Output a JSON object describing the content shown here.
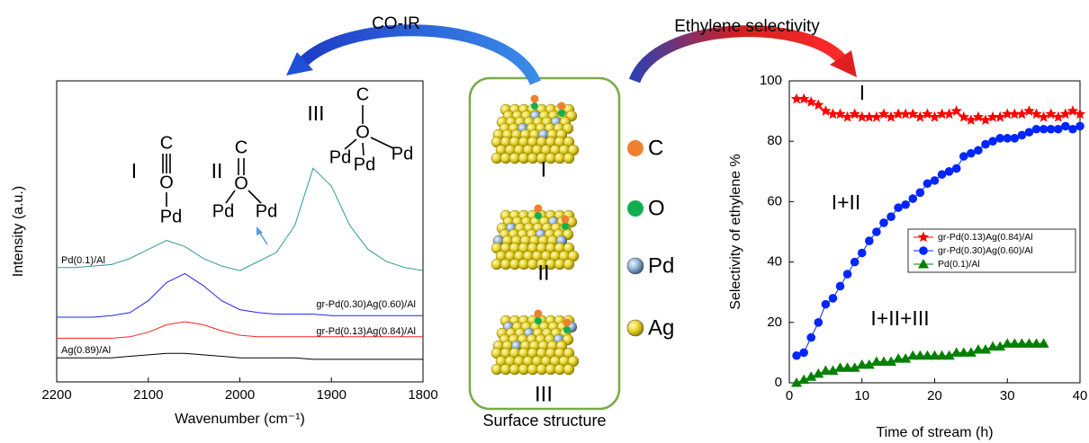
{
  "chart_data": [
    {
      "type": "line",
      "x_label": "Wavenumber (cm⁻¹)",
      "y_label": "Intensity (a.u.)",
      "x": [
        2200,
        2180,
        2160,
        2140,
        2120,
        2100,
        2080,
        2060,
        2040,
        2020,
        2000,
        1980,
        1960,
        1940,
        1920,
        1900,
        1880,
        1860,
        1840,
        1820,
        1800
      ],
      "xlim": [
        2200,
        1800
      ],
      "ylim": [
        0,
        100
      ],
      "xticks": [
        2200,
        2100,
        2000,
        1900,
        1800
      ],
      "series": [
        {
          "name": "Pd(0.1)/Al",
          "color": "#2e9c94",
          "values": [
            38,
            38,
            38.5,
            39,
            41,
            44,
            47,
            45,
            41,
            38.5,
            37,
            40,
            43,
            52,
            71,
            65,
            52,
            44,
            40,
            38,
            37
          ]
        },
        {
          "name": "gr-Pd(0.30)Ag(0.60)/Al",
          "color": "#2020ff",
          "values": [
            21.5,
            21.5,
            21.5,
            22,
            23,
            27,
            33,
            36,
            32,
            27,
            24,
            23,
            22.5,
            22.5,
            22.5,
            22,
            22,
            22,
            22,
            22,
            22
          ]
        },
        {
          "name": "gr-Pd(0.13)Ag(0.84)/Al",
          "color": "#ff2020",
          "values": [
            14.5,
            14.5,
            14.5,
            14.5,
            15,
            16.5,
            19,
            20,
            19,
            17,
            15.5,
            15,
            15,
            15,
            15,
            15,
            15,
            15,
            15,
            15,
            15
          ]
        },
        {
          "name": "Ag(0.89)/Al",
          "color": "#000000",
          "values": [
            8,
            8,
            8,
            8,
            8.5,
            9,
            9.5,
            9.5,
            9,
            8.5,
            8,
            8,
            8,
            8,
            7.5,
            7.5,
            7.5,
            7.5,
            7.5,
            7.5,
            7.5
          ]
        }
      ],
      "annotations": [
        {
          "text": "I",
          "color": "#e8201c"
        },
        {
          "text": "II",
          "color": "#e8201c"
        },
        {
          "text": "III",
          "color": "#e8201c"
        }
      ],
      "molecules": [
        {
          "atoms": [
            "C",
            "O",
            "Pd"
          ]
        },
        {
          "atoms": [
            "C",
            "O",
            "Pd",
            "Pd"
          ]
        },
        {
          "atoms": [
            "C",
            "O",
            "Pd",
            "Pd",
            "Pd"
          ]
        }
      ]
    },
    {
      "type": "line",
      "x_label": "Time of stream (h)",
      "y_label": "Selectivity of ethylene %",
      "xlim": [
        0,
        40
      ],
      "ylim": [
        0,
        100
      ],
      "xticks": [
        0,
        10,
        20,
        30,
        40
      ],
      "yticks": [
        0,
        20,
        40,
        60,
        80,
        100
      ],
      "legend": "right",
      "series": [
        {
          "name": "gr-Pd(0.13)Ag(0.84)/Al",
          "color": "#ff0000",
          "marker": "star",
          "x": [
            1,
            2,
            3,
            4,
            5,
            6,
            7,
            8,
            9,
            10,
            11,
            12,
            13,
            14,
            15,
            16,
            17,
            18,
            19,
            20,
            21,
            22,
            23,
            24,
            25,
            26,
            27,
            28,
            29,
            30,
            31,
            32,
            33,
            34,
            35,
            36,
            37,
            38,
            39,
            40
          ],
          "values": [
            94,
            94,
            93,
            92,
            90,
            89,
            89,
            88,
            89,
            88,
            88,
            88,
            89,
            88,
            89,
            89,
            89,
            88,
            89,
            88,
            89,
            89,
            90,
            88,
            87,
            88,
            87,
            88,
            88,
            89,
            89,
            89,
            90,
            89,
            88,
            89,
            88,
            89,
            90,
            89
          ]
        },
        {
          "name": "gr-Pd(0.30)Ag(0.60)/Al",
          "color": "#0026ff",
          "marker": "circle",
          "x": [
            1,
            2,
            3,
            4,
            5,
            6,
            7,
            8,
            9,
            10,
            11,
            12,
            13,
            14,
            15,
            16,
            17,
            18,
            19,
            20,
            21,
            22,
            23,
            24,
            25,
            26,
            27,
            28,
            29,
            30,
            31,
            32,
            33,
            34,
            35,
            36,
            37,
            38,
            39,
            40
          ],
          "values": [
            9,
            10,
            15,
            20,
            26,
            28,
            32,
            36,
            40,
            43,
            47,
            50,
            53,
            55,
            58,
            59,
            61,
            63,
            66,
            67,
            69,
            70,
            71,
            75,
            76,
            77,
            79,
            80,
            81,
            81,
            81,
            82,
            83,
            84,
            84,
            84,
            84,
            85,
            84,
            85
          ]
        },
        {
          "name": "Pd(0.1)/Al",
          "color": "#008000",
          "marker": "triangle",
          "x": [
            1,
            2,
            3,
            4,
            5,
            6,
            7,
            8,
            9,
            10,
            11,
            12,
            13,
            14,
            15,
            16,
            17,
            18,
            19,
            20,
            21,
            22,
            23,
            24,
            25,
            26,
            27,
            28,
            29,
            30,
            31,
            32,
            33,
            34,
            35
          ],
          "values": [
            0,
            1,
            2,
            3,
            4,
            4,
            5,
            5,
            5,
            6,
            6,
            7,
            7,
            7,
            8,
            8,
            9,
            9,
            9,
            9,
            9,
            9,
            10,
            10,
            10,
            11,
            11,
            12,
            12,
            13,
            13,
            13,
            13,
            13,
            13
          ]
        }
      ],
      "annotations": [
        {
          "text": "I",
          "color": "#ff0000"
        },
        {
          "text": "I+II",
          "color": "#3030e0"
        },
        {
          "text": "I+II+III",
          "color": "#1aa01a"
        }
      ]
    }
  ],
  "figure": {
    "arrows": [
      {
        "label": "CO-IR",
        "color": "#2050d8"
      },
      {
        "label": "Ethylene selectivity",
        "color": "#e02020"
      }
    ],
    "caption": "Surface structure",
    "sites": [
      "I",
      "II",
      "III"
    ],
    "site_color": "#e8201c",
    "elements": [
      {
        "symbol": "C",
        "color": "#f08030"
      },
      {
        "symbol": "O",
        "color": "#10b050"
      },
      {
        "symbol": "Pd",
        "color": "#8fb0d8"
      },
      {
        "symbol": "Ag",
        "color": "#f0e040"
      }
    ]
  }
}
